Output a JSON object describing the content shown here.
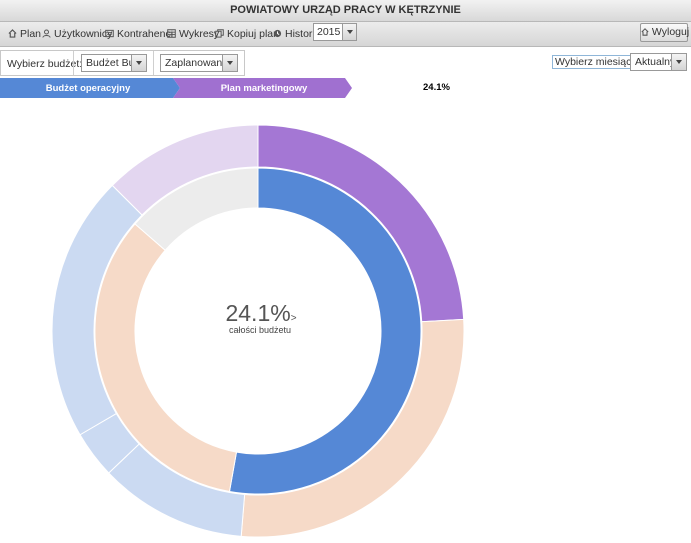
{
  "window": {
    "title": "POWIATOWY URZĄD PRACY W KĘTRZYNIE"
  },
  "toolbar": {
    "items": [
      {
        "label": "Plan",
        "icon": "home-icon"
      },
      {
        "label": "Użytkownicy",
        "icon": "user-icon"
      },
      {
        "label": "Kontrahenci",
        "icon": "contacts-icon"
      },
      {
        "label": "Wykresy",
        "icon": "chart-icon"
      },
      {
        "label": "Kopiuj plan",
        "icon": "copy-icon"
      },
      {
        "label": "Historia",
        "icon": "history-icon"
      }
    ],
    "year": "2015",
    "logout": "Wyloguj"
  },
  "filters": {
    "budget_label": "Wybierz budżet:",
    "budget_value": "Budżet Bu",
    "status_value": "Zaplanowane",
    "month_label": "Wybierz miesiąc:",
    "month_value": "Aktualny"
  },
  "breadcrumb": {
    "items": [
      "Budżet operacyjny",
      "Plan marketingowy"
    ],
    "colors": [
      "#5588d6",
      "#a070d0"
    ],
    "percent": "24.1%"
  },
  "donut": {
    "center_value": "24.1%",
    "center_suffix": ">",
    "center_label": "całości budżetu",
    "outer": [
      {
        "value": 24.1,
        "color": "#a477d4"
      },
      {
        "value": 27.2,
        "color": "#f6dac8"
      },
      {
        "value": 11.6,
        "color": "#cbdaf2"
      },
      {
        "value": 3.7,
        "color": "#cbdaf2"
      },
      {
        "value": 20.9,
        "color": "#cbdaf2"
      },
      {
        "value": 12.5,
        "color": "#e3d6f0"
      }
    ],
    "inner": [
      {
        "value": 52.8,
        "color": "#5588d6"
      },
      {
        "value": 33.6,
        "color": "#f6dac8"
      },
      {
        "value": 13.6,
        "color": "#ececec"
      }
    ]
  }
}
